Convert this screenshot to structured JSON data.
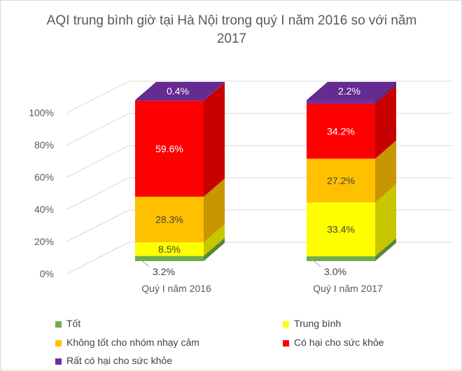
{
  "chart_data": {
    "type": "bar",
    "stacked": true,
    "percent": true,
    "style": "3d",
    "title": "AQI trung bình giờ tại Hà Nội trong quý I năm 2016 so với năm 2017",
    "title_lines": [
      "AQI trung bình giờ tại Hà Nội trong quý I năm 2016 so với năm",
      "2017"
    ],
    "categories": [
      "Quý I năm 2016",
      "Quý I năm 2017"
    ],
    "y_ticks": [
      "0%",
      "20%",
      "40%",
      "60%",
      "80%",
      "100%"
    ],
    "ylim": [
      0,
      100
    ],
    "grid": true,
    "legend_position": "bottom",
    "series": [
      {
        "name": "Tốt",
        "color": "#70ad47",
        "values": [
          3.2,
          3.0
        ],
        "labels": [
          "3.2%",
          "3.0%"
        ]
      },
      {
        "name": "Trung bình",
        "color": "#ffff00",
        "values": [
          8.5,
          33.4
        ],
        "labels": [
          "8.5%",
          "33.4%"
        ]
      },
      {
        "name": "Không tốt cho nhóm nhạy cảm",
        "color": "#ffc000",
        "values": [
          28.3,
          27.2
        ],
        "labels": [
          "28.3%",
          "27.2%"
        ]
      },
      {
        "name": "Có hại cho sức khỏe",
        "color": "#ff0000",
        "values": [
          59.6,
          34.2
        ],
        "labels": [
          "59.6%",
          "34.2%"
        ]
      },
      {
        "name": "Rất có hại cho sức khỏe",
        "color": "#7030a0",
        "values": [
          0.4,
          2.2
        ],
        "labels": [
          "0.4%",
          "2.2%"
        ]
      }
    ]
  }
}
